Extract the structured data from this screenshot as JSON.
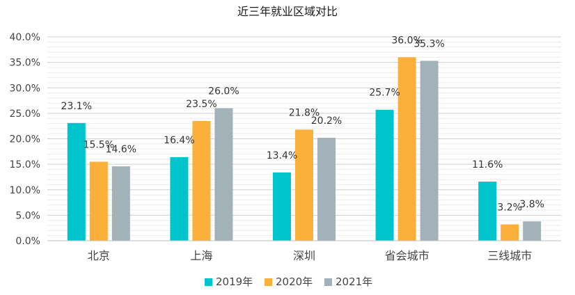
{
  "chart_data": {
    "type": "bar",
    "title": "近三年就业区域对比",
    "categories": [
      "北京",
      "上海",
      "深圳",
      "省会城市",
      "三线城市"
    ],
    "series": [
      {
        "name": "2019年",
        "color": "#00c4cc",
        "values": [
          23.1,
          16.4,
          13.4,
          25.7,
          11.6
        ]
      },
      {
        "name": "2020年",
        "color": "#fbb03b",
        "values": [
          15.5,
          23.5,
          21.8,
          36.0,
          3.2
        ]
      },
      {
        "name": "2021年",
        "color": "#a2b2b8",
        "values": [
          14.6,
          26.0,
          20.2,
          35.3,
          3.8
        ]
      }
    ],
    "yticks": [
      "0.0%",
      "5.0%",
      "10.0%",
      "15.0%",
      "20.0%",
      "25.0%",
      "30.0%",
      "35.0%",
      "40.0%"
    ],
    "ylim": [
      0,
      40
    ],
    "grid": true,
    "legend": "bottom"
  }
}
